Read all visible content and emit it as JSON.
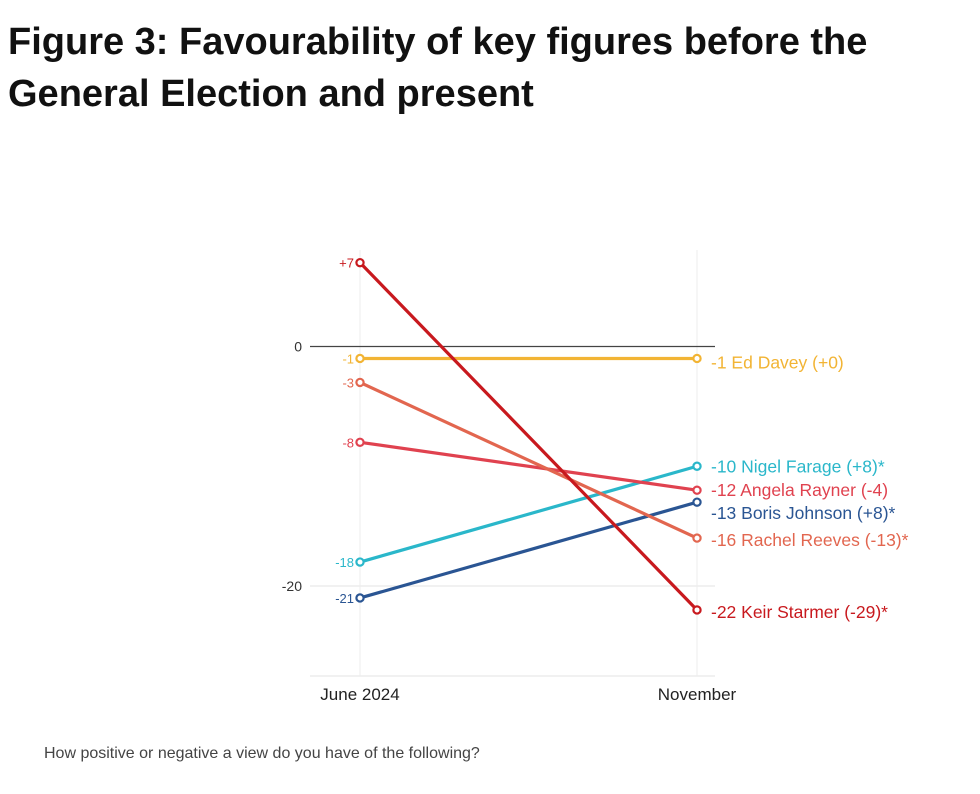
{
  "title": "Figure 3: Favourability of key figures before the General Election and present",
  "footnote": "How positive or negative a view do you have of the following?",
  "chart_data": {
    "type": "line",
    "categories": [
      "June 2024",
      "November"
    ],
    "y_ticks": [
      0,
      -20
    ],
    "y_tick_labels": [
      "0",
      "-20"
    ],
    "series": [
      {
        "name": "Ed Davey",
        "values": [
          -1,
          -1
        ],
        "start_label": "-1",
        "end_label": "-1 Ed Davey (+0)",
        "color": "#f2b434"
      },
      {
        "name": "Nigel Farage",
        "values": [
          -18,
          -10
        ],
        "start_label": "-18",
        "end_label": "-10 Nigel Farage (+8)*",
        "color": "#2ab7ca"
      },
      {
        "name": "Angela Rayner",
        "values": [
          -8,
          -12
        ],
        "start_label": "-8",
        "end_label": "-12 Angela Rayner (-4)",
        "color": "#e0424f"
      },
      {
        "name": "Boris Johnson",
        "values": [
          -21,
          -13
        ],
        "start_label": "-21",
        "end_label": "-13 Boris Johnson (+8)*",
        "color": "#2a5593"
      },
      {
        "name": "Rachel Reeves",
        "values": [
          -3,
          -16
        ],
        "start_label": "-3",
        "end_label": "-16 Rachel Reeves (-13)*",
        "color": "#e2664f"
      },
      {
        "name": "Keir Starmer",
        "values": [
          7,
          -22
        ],
        "start_label": "+7",
        "end_label": "-22 Keir Starmer (-29)*",
        "color": "#c8191e"
      }
    ]
  }
}
